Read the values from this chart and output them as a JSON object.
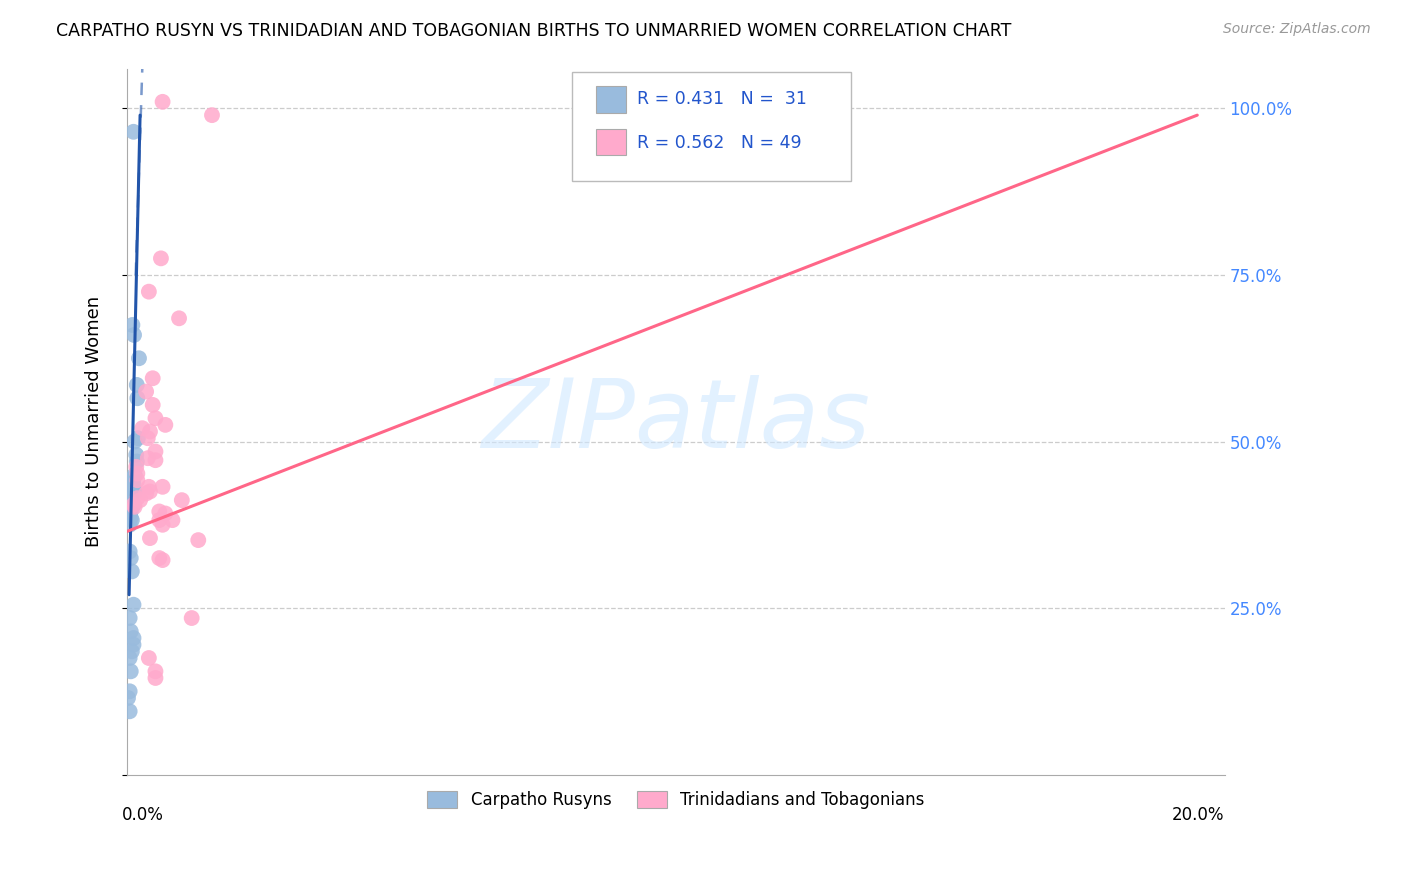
{
  "title": "CARPATHO RUSYN VS TRINIDADIAN AND TOBAGONIAN BIRTHS TO UNMARRIED WOMEN CORRELATION CHART",
  "source": "Source: ZipAtlas.com",
  "ylabel": "Births to Unmarried Women",
  "xlim": [
    0.0,
    20.0
  ],
  "ylim": [
    0.0,
    1.06
  ],
  "blue_color": "#99BBDD",
  "pink_color": "#FFAACC",
  "blue_line_color": "#2255AA",
  "pink_line_color": "#FF6688",
  "watermark_text": "ZIPatlas",
  "blue_dots": [
    [
      0.12,
      0.965
    ],
    [
      0.1,
      0.675
    ],
    [
      0.13,
      0.66
    ],
    [
      0.22,
      0.625
    ],
    [
      0.18,
      0.585
    ],
    [
      0.19,
      0.565
    ],
    [
      0.2,
      0.505
    ],
    [
      0.14,
      0.5
    ],
    [
      0.17,
      0.48
    ],
    [
      0.18,
      0.47
    ],
    [
      0.14,
      0.45
    ],
    [
      0.12,
      0.445
    ],
    [
      0.1,
      0.44
    ],
    [
      0.12,
      0.435
    ],
    [
      0.09,
      0.432
    ],
    [
      0.14,
      0.425
    ],
    [
      0.09,
      0.42
    ],
    [
      0.07,
      0.415
    ],
    [
      0.07,
      0.408
    ],
    [
      0.12,
      0.405
    ],
    [
      0.07,
      0.395
    ],
    [
      0.05,
      0.39
    ],
    [
      0.07,
      0.385
    ],
    [
      0.09,
      0.382
    ],
    [
      0.05,
      0.375
    ],
    [
      0.05,
      0.335
    ],
    [
      0.07,
      0.325
    ],
    [
      0.09,
      0.305
    ],
    [
      0.12,
      0.255
    ],
    [
      0.05,
      0.235
    ],
    [
      0.07,
      0.215
    ],
    [
      0.12,
      0.205
    ],
    [
      0.12,
      0.195
    ],
    [
      0.09,
      0.185
    ],
    [
      0.05,
      0.175
    ],
    [
      0.07,
      0.155
    ],
    [
      0.05,
      0.125
    ],
    [
      0.02,
      0.115
    ],
    [
      0.05,
      0.095
    ]
  ],
  "pink_dots": [
    [
      0.65,
      1.01
    ],
    [
      1.55,
      0.99
    ],
    [
      0.62,
      0.775
    ],
    [
      0.4,
      0.725
    ],
    [
      0.95,
      0.685
    ],
    [
      0.47,
      0.595
    ],
    [
      0.35,
      0.575
    ],
    [
      0.47,
      0.555
    ],
    [
      0.52,
      0.535
    ],
    [
      0.7,
      0.525
    ],
    [
      0.28,
      0.52
    ],
    [
      0.42,
      0.515
    ],
    [
      0.38,
      0.505
    ],
    [
      0.52,
      0.485
    ],
    [
      0.38,
      0.475
    ],
    [
      0.52,
      0.472
    ],
    [
      0.17,
      0.462
    ],
    [
      0.19,
      0.452
    ],
    [
      0.19,
      0.442
    ],
    [
      0.4,
      0.432
    ],
    [
      0.65,
      0.432
    ],
    [
      0.42,
      0.425
    ],
    [
      0.35,
      0.422
    ],
    [
      0.19,
      0.415
    ],
    [
      0.24,
      0.412
    ],
    [
      1.0,
      0.412
    ],
    [
      0.12,
      0.405
    ],
    [
      0.14,
      0.402
    ],
    [
      0.59,
      0.395
    ],
    [
      0.7,
      0.392
    ],
    [
      0.59,
      0.382
    ],
    [
      0.83,
      0.382
    ],
    [
      0.65,
      0.375
    ],
    [
      0.42,
      0.355
    ],
    [
      1.3,
      0.352
    ],
    [
      0.59,
      0.325
    ],
    [
      0.65,
      0.322
    ],
    [
      1.18,
      0.235
    ],
    [
      0.4,
      0.175
    ],
    [
      0.52,
      0.155
    ],
    [
      0.52,
      0.145
    ]
  ],
  "blue_line": {
    "x0": 0.04,
    "y0": 0.27,
    "x1": 0.24,
    "y1": 0.99
  },
  "blue_dash_line": {
    "x0": 0.16,
    "y0": 0.75,
    "x1": 0.28,
    "y1": 1.06
  },
  "pink_line": {
    "x0": 0.0,
    "y0": 0.365,
    "x1": 19.5,
    "y1": 0.99
  },
  "legend": {
    "R1": "0.431",
    "N1": "31",
    "R2": "0.562",
    "N2": "49"
  }
}
